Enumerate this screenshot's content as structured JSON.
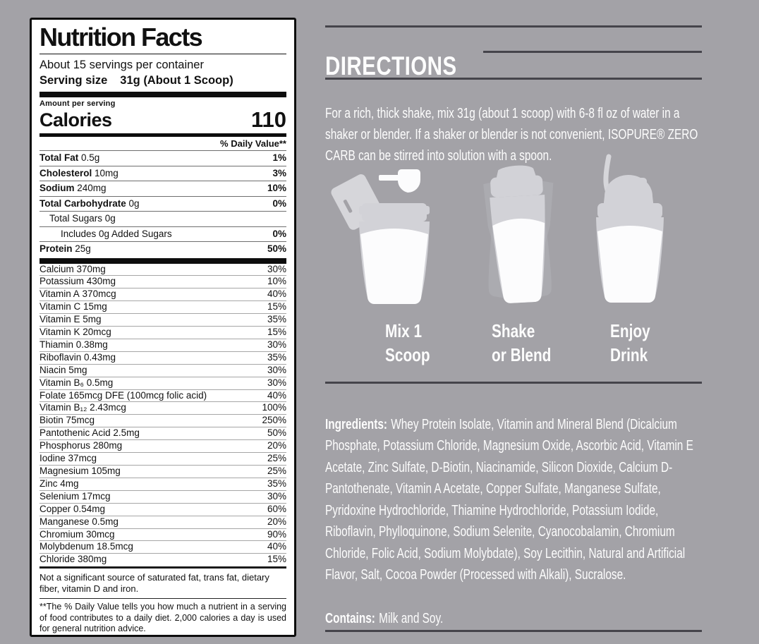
{
  "colors": {
    "background": "#a3a2a7",
    "panel_bg": "#ffffff",
    "panel_text": "#111111",
    "rule_dark": "#45444b",
    "text_light": "#fdfdfd",
    "icon_gray": "#d2d2d7",
    "icon_ghost": "#b4b4ba",
    "icon_white": "#fcfcfd"
  },
  "nutrition_label": {
    "title": "Nutrition Facts",
    "servings_per_container": "About 15 servings per container",
    "serving_size_label": "Serving size",
    "serving_size_value": "31g (About 1 Scoop)",
    "amount_per_serving": "Amount per serving",
    "calories_label": "Calories",
    "calories_value": "110",
    "daily_value_header": "% Daily Value**",
    "main_rows": [
      {
        "name": "Total Fat",
        "amount": "0.5g",
        "dv": "1%",
        "bold": true,
        "indent": 0
      },
      {
        "name": "Cholesterol",
        "amount": "10mg",
        "dv": "3%",
        "bold": true,
        "indent": 0
      },
      {
        "name": "Sodium",
        "amount": "240mg",
        "dv": "10%",
        "bold": true,
        "indent": 0
      },
      {
        "name": "Total Carbohydrate",
        "amount": "0g",
        "dv": "0%",
        "bold": true,
        "indent": 0
      },
      {
        "name": "Total Sugars",
        "amount": "0g",
        "dv": "",
        "bold": false,
        "indent": 1
      },
      {
        "name": "Includes 0g Added Sugars",
        "amount": "",
        "dv": "0%",
        "bold": false,
        "indent": 2
      },
      {
        "name": "Protein",
        "amount": "25g",
        "dv": "50%",
        "bold": true,
        "indent": 0
      }
    ],
    "micro_rows": [
      {
        "name": "Calcium",
        "amount": "370mg",
        "dv": "30%"
      },
      {
        "name": "Potassium",
        "amount": "430mg",
        "dv": "10%"
      },
      {
        "name": "Vitamin A",
        "amount": "370mcg",
        "dv": "40%"
      },
      {
        "name": "Vitamin C",
        "amount": "15mg",
        "dv": "15%"
      },
      {
        "name": "Vitamin E",
        "amount": "5mg",
        "dv": "35%"
      },
      {
        "name": "Vitamin K",
        "amount": "20mcg",
        "dv": "15%"
      },
      {
        "name": "Thiamin",
        "amount": "0.38mg",
        "dv": "30%"
      },
      {
        "name": "Riboflavin",
        "amount": "0.43mg",
        "dv": "35%"
      },
      {
        "name": "Niacin",
        "amount": "5mg",
        "dv": "30%"
      },
      {
        "name": "Vitamin B₆",
        "amount": "0.5mg",
        "dv": "30%"
      },
      {
        "name": "Folate",
        "amount": "165mcg DFE (100mcg folic acid)",
        "dv": "40%"
      },
      {
        "name": "Vitamin B₁₂",
        "amount": "2.43mcg",
        "dv": "100%"
      },
      {
        "name": "Biotin",
        "amount": "75mcg",
        "dv": "250%"
      },
      {
        "name": "Pantothenic Acid",
        "amount": "2.5mg",
        "dv": "50%"
      },
      {
        "name": "Phosphorus",
        "amount": "280mg",
        "dv": "20%"
      },
      {
        "name": "Iodine",
        "amount": "37mcg",
        "dv": "25%"
      },
      {
        "name": "Magnesium",
        "amount": "105mg",
        "dv": "25%"
      },
      {
        "name": "Zinc",
        "amount": "4mg",
        "dv": "35%"
      },
      {
        "name": "Selenium",
        "amount": "17mcg",
        "dv": "30%"
      },
      {
        "name": "Copper",
        "amount": "0.54mg",
        "dv": "60%"
      },
      {
        "name": "Manganese",
        "amount": "0.5mg",
        "dv": "20%"
      },
      {
        "name": "Chromium",
        "amount": "30mcg",
        "dv": "90%"
      },
      {
        "name": "Molybdenum",
        "amount": "18.5mcg",
        "dv": "40%"
      },
      {
        "name": "Chloride",
        "amount": "380mg",
        "dv": "15%"
      }
    ],
    "footnote_1": "Not a significant source of saturated fat, trans fat, dietary fiber, vitamin D and iron.",
    "footnote_2": "**The % Daily Value tells you how much a nutrient in a serving of food contributes to a daily diet. 2,000 calories a day is used for general nutrition advice."
  },
  "directions": {
    "heading": "DIRECTIONS",
    "body": "For a rich, thick shake, mix 31g (about 1 scoop) with 6-8 fl oz of water in a shaker or blender. If a shaker or blender is not convenient, ISOPURE® ZERO CARB can be stirred into solution with a spoon.",
    "steps": [
      {
        "icon": "scoop-lid-bottle-icon",
        "label1": "Mix 1",
        "label2": "Scoop"
      },
      {
        "icon": "shaking-bottle-icon",
        "label1": "Shake",
        "label2": "or Blend"
      },
      {
        "icon": "straw-bottle-icon",
        "label1": "Enjoy",
        "label2": "Drink"
      }
    ]
  },
  "ingredients": {
    "heading": "Ingredients:",
    "body": "Whey Protein Isolate, Vitamin and Mineral Blend (Dicalcium Phosphate, Potassium Chloride, Magnesium Oxide, Ascorbic Acid, Vitamin E Acetate, Zinc Sulfate, D-Biotin, Niacinamide, Silicon Dioxide, Calcium D-Pantothenate, Vitamin A Acetate, Copper Sulfate, Manganese Sulfate, Pyridoxine Hydrochloride, Thiamine Hydrochloride, Potassium Iodide, Riboflavin, Phylloquinone, Sodium Selenite, Cyanocobalamin, Chromium Chloride, Folic Acid, Sodium Molybdate), Soy Lecithin, Natural and Artificial Flavor, Salt, Cocoa Powder (Processed with Alkali), Sucralose."
  },
  "contains": {
    "heading": "Contains:",
    "body": "Milk and Soy."
  }
}
